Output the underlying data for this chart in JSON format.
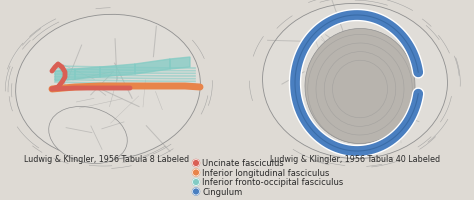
{
  "left_label": "Ludwig & Klingler, 1956 Tabula 8 Labeled",
  "right_label": "Ludwig & Klingler, 1956 Tabula 40 Labeled",
  "legend_items": [
    {
      "label": "Uncinate fasciculus",
      "color": "#D95F54"
    },
    {
      "label": "Inferior longitudinal fasciculus",
      "color": "#E8844A"
    },
    {
      "label": "Inferior fronto-occipital fasciculus",
      "color": "#82CBC4"
    },
    {
      "label": "Cingulum",
      "color": "#4A7FC0"
    }
  ],
  "bg_color": "#DEDAD4",
  "brain_bg": "#C8C4BC",
  "brain_light": "#E0DDD8",
  "brain_mid": "#B8B4AE",
  "brain_dark": "#909090",
  "text_color": "#2A2A2A",
  "label_fontsize": 5.8,
  "legend_fontsize": 6.0,
  "fig_width": 4.74,
  "fig_height": 2.01,
  "dpi": 100
}
